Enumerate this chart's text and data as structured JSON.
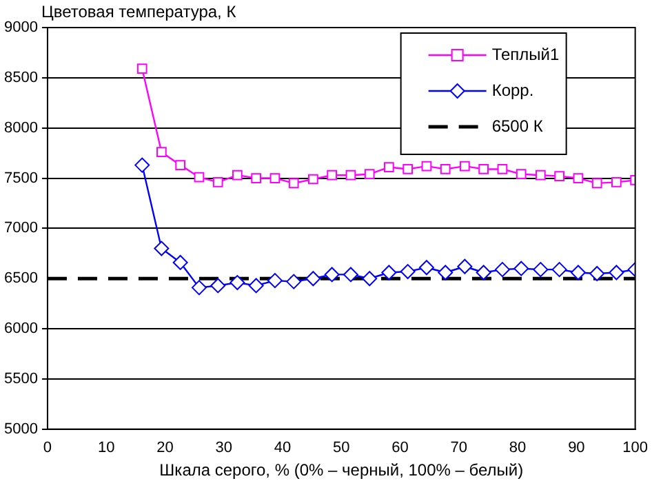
{
  "chart_data": {
    "type": "line",
    "ylabel": "Цветовая температура, К",
    "xlabel": "Шкала серого, % (0% – черный, 100% – белый)",
    "xlim": [
      0,
      100
    ],
    "xticks": [
      0,
      10,
      20,
      30,
      40,
      50,
      60,
      70,
      80,
      90,
      100
    ],
    "ylim": [
      5000,
      9000
    ],
    "yticks": [
      5000,
      5500,
      6000,
      6500,
      7000,
      7500,
      8000,
      8500,
      9000
    ],
    "grid": "y",
    "legend": "top right",
    "x": [
      16.1,
      19.4,
      22.6,
      25.8,
      29.0,
      32.3,
      35.5,
      38.7,
      41.9,
      45.2,
      48.4,
      51.6,
      54.8,
      58.1,
      61.3,
      64.5,
      67.7,
      71.0,
      74.2,
      77.4,
      80.6,
      83.9,
      87.1,
      90.3,
      93.5,
      96.8,
      100
    ],
    "series": [
      {
        "name": "Теплый1",
        "color": "#ff00ff",
        "marker": "square",
        "line_style": "solid",
        "values": [
          8590,
          7760,
          7630,
          7510,
          7460,
          7530,
          7500,
          7500,
          7450,
          7490,
          7530,
          7530,
          7540,
          7610,
          7590,
          7620,
          7590,
          7620,
          7590,
          7590,
          7540,
          7530,
          7520,
          7500,
          7450,
          7460,
          7480
        ]
      },
      {
        "name": "Корр.",
        "color": "#0000ff",
        "marker": "diamond",
        "line_style": "solid",
        "values": [
          7630,
          6800,
          6660,
          6410,
          6430,
          6460,
          6430,
          6480,
          6470,
          6500,
          6540,
          6540,
          6500,
          6560,
          6570,
          6610,
          6560,
          6620,
          6560,
          6590,
          6600,
          6590,
          6590,
          6560,
          6550,
          6560,
          6590
        ]
      },
      {
        "name": "6500 К",
        "color": "#000000",
        "marker": "none",
        "line_style": "dashed",
        "x": [
          0,
          100
        ],
        "values": [
          6500,
          6500
        ]
      }
    ]
  }
}
